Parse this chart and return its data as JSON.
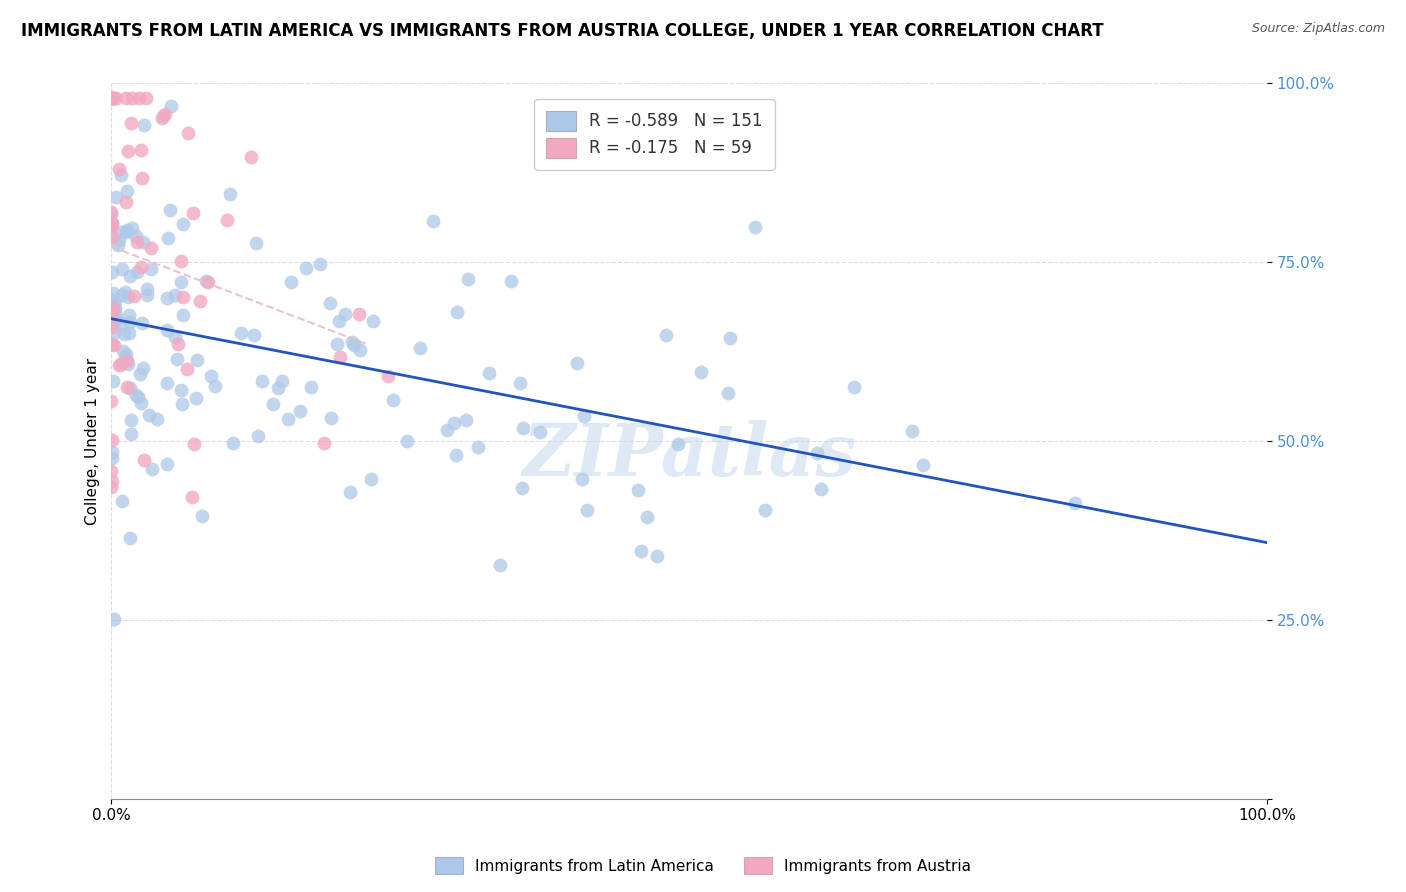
{
  "title": "IMMIGRANTS FROM LATIN AMERICA VS IMMIGRANTS FROM AUSTRIA COLLEGE, UNDER 1 YEAR CORRELATION CHART",
  "source": "Source: ZipAtlas.com",
  "ylabel": "College, Under 1 year",
  "xlim": [
    0.0,
    1.0
  ],
  "ylim": [
    0.0,
    1.0
  ],
  "ytick_vals": [
    0.0,
    0.25,
    0.5,
    0.75,
    1.0
  ],
  "ytick_labels": [
    "",
    "25.0%",
    "50.0%",
    "75.0%",
    "100.0%"
  ],
  "color_blue": "#adc8e8",
  "color_pink": "#f2a8c0",
  "line_blue": "#2255bb",
  "line_pink_dashed": "#e8bcc8",
  "watermark": "ZIPatlas",
  "legend_label1": "Immigrants from Latin America",
  "legend_label2": "Immigrants from Austria",
  "legend_r1": "-0.589",
  "legend_n1": "151",
  "legend_r2": "-0.175",
  "legend_n2": "59",
  "r1": -0.589,
  "n1": 151,
  "r2": -0.175,
  "n2": 59,
  "seed": 42,
  "ytick_color": "#4a90d9",
  "title_fontsize": 12,
  "source_fontsize": 9
}
